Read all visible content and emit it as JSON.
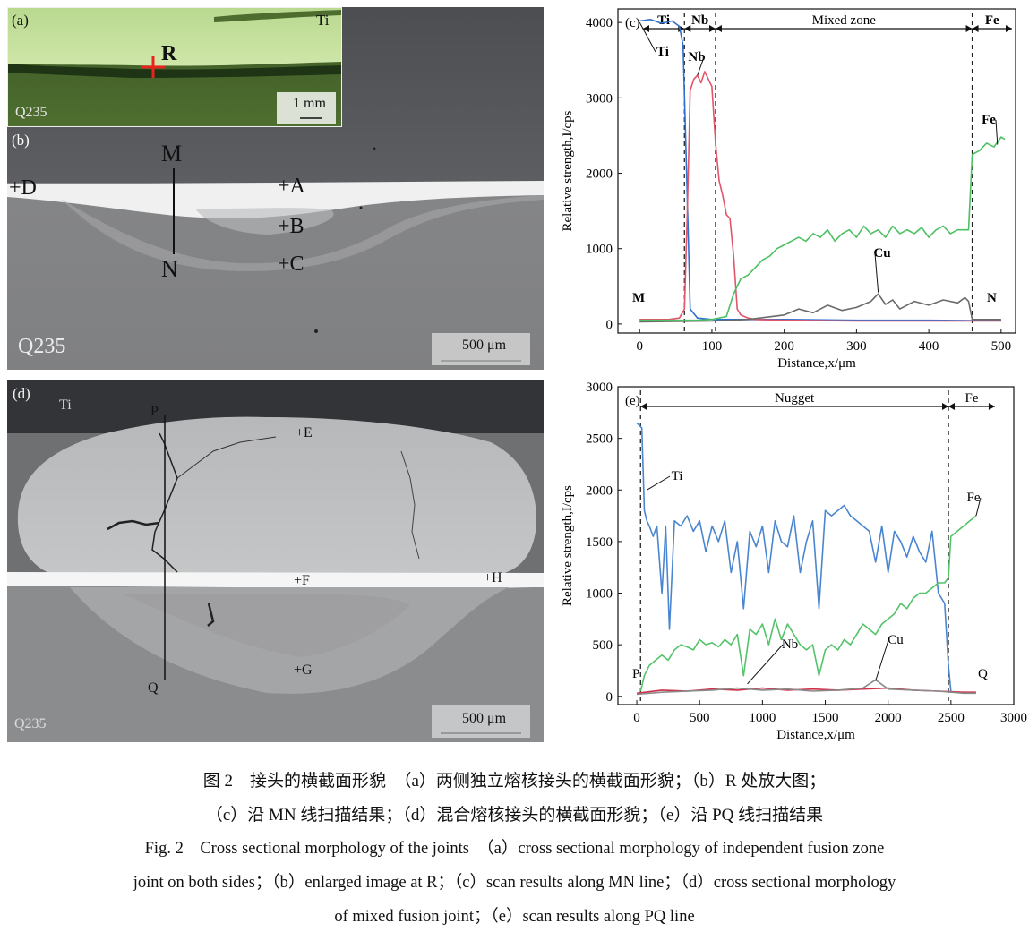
{
  "panels": {
    "a": {
      "tag": "(a)",
      "material_top": "Ti",
      "material_bottom": "Q235",
      "point": "R",
      "scale": "1 mm"
    },
    "b": {
      "tag": "(b)",
      "material": "Q235",
      "scale": "500 μm",
      "labels": [
        "M",
        "N",
        "+D",
        "+A",
        "+B",
        "+C"
      ]
    },
    "d": {
      "tag": "(d)",
      "material_top": "Ti",
      "material_bottom": "Q235",
      "scale": "500 μm",
      "labels": [
        "P",
        "Q",
        "+E",
        "+F",
        "+H",
        "+G"
      ]
    }
  },
  "chart_data": [
    {
      "type": "line",
      "tag": "(c)",
      "xlabel": "Distance,x/μm",
      "ylabel": "Relative strength,I/cps",
      "xlim": [
        -30,
        520
      ],
      "ylim": [
        -120,
        4180
      ],
      "xticks": [
        0,
        100,
        200,
        300,
        400,
        500
      ],
      "yticks": [
        0,
        1000,
        2000,
        3000,
        4000
      ],
      "zones": [
        {
          "label": "Ti",
          "from": -30,
          "to": 62
        },
        {
          "label": "Nb",
          "from": 62,
          "to": 105
        },
        {
          "label": "Mixed zone",
          "from": 105,
          "to": 460
        },
        {
          "label": "Fe",
          "from": 460,
          "to": 520
        }
      ],
      "boundaries": [
        62,
        105,
        460
      ],
      "end_labels": {
        "start": "M",
        "end": "N"
      },
      "series": [
        {
          "name": "Ti",
          "color": "#2f6fd0",
          "x": [
            0,
            15,
            30,
            45,
            55,
            60,
            65,
            70,
            80,
            100,
            150,
            200,
            300,
            400,
            460,
            500
          ],
          "values": [
            4020,
            4040,
            3990,
            4020,
            3950,
            3700,
            2000,
            200,
            80,
            60,
            60,
            60,
            50,
            50,
            45,
            45
          ]
        },
        {
          "name": "Nb",
          "color": "#e0556a",
          "x": [
            0,
            40,
            55,
            62,
            66,
            70,
            75,
            80,
            85,
            90,
            95,
            100,
            105,
            110,
            115,
            120,
            125,
            130,
            135,
            140,
            150,
            160,
            200,
            300,
            400,
            500
          ],
          "values": [
            60,
            60,
            80,
            200,
            1500,
            3100,
            3250,
            3300,
            3200,
            3350,
            3250,
            3150,
            2400,
            1900,
            1700,
            1450,
            1400,
            900,
            200,
            120,
            80,
            60,
            50,
            40,
            40,
            40
          ]
        },
        {
          "name": "Fe",
          "color": "#4cc062",
          "x": [
            0,
            60,
            80,
            100,
            120,
            130,
            140,
            150,
            160,
            170,
            180,
            190,
            200,
            210,
            220,
            230,
            240,
            250,
            260,
            270,
            280,
            290,
            300,
            310,
            320,
            330,
            340,
            350,
            360,
            370,
            380,
            390,
            400,
            410,
            420,
            430,
            440,
            450,
            455,
            460,
            470,
            480,
            490,
            500,
            505
          ],
          "values": [
            50,
            50,
            50,
            60,
            100,
            400,
            600,
            650,
            750,
            850,
            900,
            1000,
            1050,
            1100,
            1150,
            1100,
            1200,
            1150,
            1250,
            1100,
            1200,
            1250,
            1150,
            1300,
            1200,
            1250,
            1150,
            1300,
            1200,
            1250,
            1200,
            1280,
            1150,
            1250,
            1300,
            1200,
            1250,
            1250,
            1250,
            2250,
            2300,
            2400,
            2350,
            2480,
            2450
          ]
        },
        {
          "name": "Cu",
          "color": "#6a6a6a",
          "x": [
            0,
            100,
            150,
            200,
            220,
            240,
            260,
            280,
            300,
            320,
            330,
            340,
            350,
            360,
            380,
            400,
            420,
            440,
            450,
            455,
            460,
            500
          ],
          "values": [
            30,
            40,
            60,
            120,
            200,
            150,
            250,
            180,
            220,
            300,
            400,
            260,
            320,
            200,
            300,
            250,
            320,
            280,
            350,
            300,
            60,
            60
          ]
        }
      ],
      "annotations": [
        "Ti",
        "Nb",
        "Fe",
        "Cu"
      ]
    },
    {
      "type": "line",
      "tag": "(e)",
      "xlabel": "Distance,x/μm",
      "ylabel": "Relative strength,I/cps",
      "xlim": [
        -150,
        3000
      ],
      "ylim": [
        -80,
        3000
      ],
      "xticks": [
        0,
        500,
        1000,
        1500,
        2000,
        2500,
        3000
      ],
      "yticks": [
        0,
        500,
        1000,
        1500,
        2000,
        2500,
        3000
      ],
      "zones": [
        {
          "label": "Nugget",
          "from": 30,
          "to": 2480
        },
        {
          "label": "Fe",
          "from": 2480,
          "to": 2850
        }
      ],
      "boundaries": [
        30,
        2480
      ],
      "end_labels": {
        "start": "P",
        "end": "Q"
      },
      "series": [
        {
          "name": "Ti",
          "color": "#4a86d0",
          "x": [
            0,
            40,
            60,
            80,
            100,
            130,
            160,
            200,
            230,
            260,
            300,
            350,
            400,
            450,
            500,
            550,
            600,
            650,
            700,
            750,
            800,
            850,
            900,
            950,
            1000,
            1050,
            1100,
            1150,
            1200,
            1250,
            1300,
            1350,
            1400,
            1450,
            1500,
            1550,
            1600,
            1650,
            1700,
            1750,
            1800,
            1850,
            1900,
            1950,
            2000,
            2050,
            2100,
            2150,
            2200,
            2250,
            2300,
            2350,
            2400,
            2450,
            2480,
            2500
          ],
          "values": [
            2650,
            2600,
            1800,
            1700,
            1650,
            1550,
            1650,
            1000,
            1650,
            650,
            1700,
            1650,
            1750,
            1600,
            1700,
            1400,
            1650,
            1500,
            1700,
            1200,
            1500,
            850,
            1600,
            1450,
            1650,
            1200,
            1700,
            1500,
            1450,
            1750,
            1200,
            1500,
            1700,
            850,
            1800,
            1750,
            1800,
            1850,
            1750,
            1700,
            1650,
            1600,
            1300,
            1650,
            1200,
            1600,
            1500,
            1350,
            1550,
            1400,
            1300,
            1600,
            1000,
            900,
            300,
            50
          ]
        },
        {
          "name": "Fe",
          "color": "#53c36a",
          "x": [
            30,
            60,
            100,
            150,
            200,
            250,
            300,
            350,
            400,
            450,
            500,
            550,
            600,
            650,
            700,
            750,
            800,
            850,
            900,
            950,
            1000,
            1050,
            1100,
            1150,
            1200,
            1250,
            1300,
            1350,
            1400,
            1450,
            1500,
            1550,
            1600,
            1650,
            1700,
            1750,
            1800,
            1850,
            1900,
            1950,
            2000,
            2050,
            2100,
            2150,
            2200,
            2250,
            2300,
            2350,
            2400,
            2450,
            2480,
            2500,
            2550,
            2600,
            2650,
            2700
          ],
          "values": [
            50,
            200,
            300,
            350,
            400,
            350,
            450,
            500,
            480,
            450,
            550,
            500,
            520,
            480,
            550,
            500,
            600,
            200,
            650,
            600,
            700,
            500,
            750,
            550,
            700,
            600,
            500,
            450,
            500,
            200,
            450,
            500,
            450,
            550,
            500,
            600,
            700,
            650,
            600,
            700,
            750,
            800,
            900,
            850,
            950,
            1000,
            1000,
            1050,
            1100,
            1100,
            1150,
            1550,
            1600,
            1650,
            1700,
            1750
          ]
        },
        {
          "name": "Nb",
          "color": "#d0314a",
          "x": [
            0,
            200,
            400,
            600,
            800,
            1000,
            1200,
            1400,
            1600,
            1800,
            2000,
            2200,
            2400,
            2600,
            2700
          ],
          "values": [
            30,
            60,
            50,
            70,
            60,
            80,
            60,
            70,
            60,
            70,
            80,
            60,
            50,
            40,
            40
          ]
        },
        {
          "name": "Cu",
          "color": "#8a8a8a",
          "x": [
            0,
            200,
            400,
            600,
            800,
            1000,
            1200,
            1400,
            1600,
            1800,
            1900,
            2000,
            2200,
            2400,
            2600,
            2700
          ],
          "values": [
            20,
            40,
            50,
            60,
            80,
            60,
            70,
            50,
            60,
            80,
            160,
            70,
            60,
            50,
            30,
            30
          ]
        }
      ],
      "annotations": [
        "Ti",
        "Fe",
        "Nb",
        "Cu"
      ]
    }
  ],
  "caption": {
    "zh_line1": "图 2　接头的横截面形貌　（a）两侧独立熔核接头的横截面形貌；（b）R 处放大图；",
    "zh_line2": "（c）沿 MN 线扫描结果；（d）混合熔核接头的横截面形貌；（e）沿 PQ 线扫描结果",
    "en_line1": "Fig. 2　Cross sectional morphology of the joints　（a）cross sectional morphology of independent fusion zone",
    "en_line2": "joint on both sides；（b）enlarged image at R；（c）scan results along MN line；（d）cross sectional morphology",
    "en_line3": "of mixed fusion joint；（e）scan results along PQ line"
  }
}
